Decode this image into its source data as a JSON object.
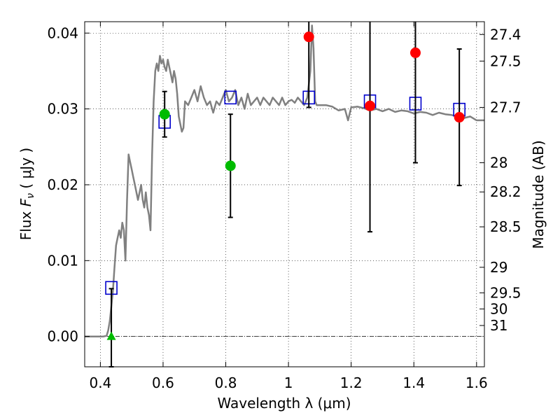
{
  "chart_data": {
    "type": "scatter",
    "xlabel": "Wavelength  λ (μm)",
    "ylabel_left": {
      "prefix": "Flux  ",
      "symbol": "F",
      "subscript": "ν",
      "units": "  ( μJy )"
    },
    "ylabel_right": "Magnitude (AB)",
    "xlim": [
      0.35,
      1.625
    ],
    "ylim": [
      -0.004,
      0.0415
    ],
    "x_ticks": [
      {
        "value": 0.4,
        "label": "0.4"
      },
      {
        "value": 0.6,
        "label": "0.6"
      },
      {
        "value": 0.8,
        "label": "0.8"
      },
      {
        "value": 1.0,
        "label": "1"
      },
      {
        "value": 1.2,
        "label": "1.2"
      },
      {
        "value": 1.4,
        "label": "1.4"
      },
      {
        "value": 1.6,
        "label": "1.6"
      }
    ],
    "y_ticks": [
      {
        "value": 0.0,
        "label": "0.00"
      },
      {
        "value": 0.01,
        "label": "0.01"
      },
      {
        "value": 0.02,
        "label": "0.02"
      },
      {
        "value": 0.03,
        "label": "0.03"
      },
      {
        "value": 0.04,
        "label": "0.04"
      }
    ],
    "mag_ticks": [
      {
        "value": 27.4,
        "label": "27.4"
      },
      {
        "value": 27.5,
        "label": "27.5"
      },
      {
        "value": 27.7,
        "label": "27.7"
      },
      {
        "value": 28.0,
        "label": "28"
      },
      {
        "value": 28.2,
        "label": "28.2"
      },
      {
        "value": 28.5,
        "label": "28.5"
      },
      {
        "value": 29.0,
        "label": "29"
      },
      {
        "value": 29.5,
        "label": "29.5"
      },
      {
        "value": 30.0,
        "label": "30"
      },
      {
        "value": 31.0,
        "label": "31"
      }
    ],
    "grid": true,
    "zero_line": true,
    "colors": {
      "template": "#808080",
      "model": "#0000cc",
      "detection": "#ff0000",
      "green": "#00bb00",
      "errorbar": "#000000"
    },
    "template_spectrum": {
      "x": [
        0.35,
        0.41,
        0.42,
        0.425,
        0.43,
        0.435,
        0.44,
        0.445,
        0.45,
        0.455,
        0.46,
        0.465,
        0.47,
        0.475,
        0.48,
        0.485,
        0.49,
        0.495,
        0.5,
        0.505,
        0.51,
        0.515,
        0.52,
        0.525,
        0.53,
        0.535,
        0.54,
        0.545,
        0.55,
        0.555,
        0.56,
        0.565,
        0.57,
        0.575,
        0.58,
        0.585,
        0.59,
        0.595,
        0.6,
        0.605,
        0.61,
        0.615,
        0.62,
        0.625,
        0.63,
        0.635,
        0.64,
        0.645,
        0.65,
        0.655,
        0.66,
        0.665,
        0.67,
        0.68,
        0.69,
        0.7,
        0.71,
        0.72,
        0.73,
        0.74,
        0.75,
        0.76,
        0.77,
        0.78,
        0.79,
        0.8,
        0.81,
        0.82,
        0.83,
        0.84,
        0.85,
        0.86,
        0.87,
        0.88,
        0.89,
        0.9,
        0.91,
        0.92,
        0.93,
        0.94,
        0.95,
        0.96,
        0.97,
        0.98,
        0.99,
        1.0,
        1.01,
        1.02,
        1.03,
        1.04,
        1.05,
        1.06,
        1.07,
        1.075,
        1.08,
        1.085,
        1.09,
        1.1,
        1.12,
        1.14,
        1.16,
        1.18,
        1.19,
        1.2,
        1.22,
        1.24,
        1.26,
        1.28,
        1.3,
        1.32,
        1.34,
        1.36,
        1.38,
        1.4,
        1.42,
        1.44,
        1.46,
        1.48,
        1.5,
        1.52,
        1.54,
        1.56,
        1.58,
        1.6,
        1.625
      ],
      "y": [
        0.0,
        0.0,
        0.0001,
        0.0008,
        0.002,
        0.004,
        0.006,
        0.009,
        0.012,
        0.013,
        0.014,
        0.013,
        0.015,
        0.014,
        0.01,
        0.018,
        0.024,
        0.023,
        0.022,
        0.021,
        0.02,
        0.019,
        0.018,
        0.019,
        0.02,
        0.018,
        0.017,
        0.019,
        0.017,
        0.016,
        0.014,
        0.024,
        0.031,
        0.035,
        0.036,
        0.035,
        0.037,
        0.036,
        0.0365,
        0.0355,
        0.035,
        0.0365,
        0.0355,
        0.0345,
        0.0335,
        0.035,
        0.034,
        0.032,
        0.029,
        0.028,
        0.027,
        0.0275,
        0.031,
        0.0305,
        0.0315,
        0.0325,
        0.031,
        0.033,
        0.0315,
        0.0305,
        0.031,
        0.0295,
        0.031,
        0.0305,
        0.0315,
        0.0325,
        0.031,
        0.0315,
        0.0325,
        0.0305,
        0.0315,
        0.03,
        0.032,
        0.0305,
        0.031,
        0.0315,
        0.0305,
        0.0315,
        0.031,
        0.0305,
        0.0315,
        0.031,
        0.0305,
        0.0315,
        0.0305,
        0.031,
        0.0312,
        0.0308,
        0.0315,
        0.031,
        0.0305,
        0.0315,
        0.035,
        0.041,
        0.038,
        0.031,
        0.0305,
        0.0305,
        0.0305,
        0.0303,
        0.0298,
        0.03,
        0.0285,
        0.0302,
        0.0303,
        0.0301,
        0.0298,
        0.03,
        0.0297,
        0.03,
        0.0296,
        0.0298,
        0.0297,
        0.0294,
        0.0296,
        0.0295,
        0.0292,
        0.0295,
        0.0293,
        0.0292,
        0.029,
        0.0288,
        0.029,
        0.0285,
        0.0285
      ]
    },
    "model_photometry": {
      "x": [
        0.435,
        0.605,
        0.815,
        1.065,
        1.26,
        1.405,
        1.545
      ],
      "y": [
        0.0064,
        0.0283,
        0.0315,
        0.0315,
        0.031,
        0.0307,
        0.0299
      ]
    },
    "observed": [
      {
        "x": 0.435,
        "y": 0.0,
        "err": 0.0063,
        "color": "green",
        "marker": "triangle"
      },
      {
        "x": 0.605,
        "y": 0.0293,
        "err": 0.003,
        "color": "green",
        "marker": "circle"
      },
      {
        "x": 0.815,
        "y": 0.0225,
        "err": 0.0068,
        "color": "green",
        "marker": "circle"
      },
      {
        "x": 1.065,
        "y": 0.0395,
        "err": 0.0093,
        "color": "red",
        "marker": "circle"
      },
      {
        "x": 1.26,
        "y": 0.0304,
        "err": 0.0166,
        "color": "red",
        "marker": "circle"
      },
      {
        "x": 1.405,
        "y": 0.0374,
        "err": 0.0145,
        "color": "red",
        "marker": "circle"
      },
      {
        "x": 1.545,
        "y": 0.0289,
        "err": 0.009,
        "color": "red",
        "marker": "circle"
      }
    ]
  }
}
